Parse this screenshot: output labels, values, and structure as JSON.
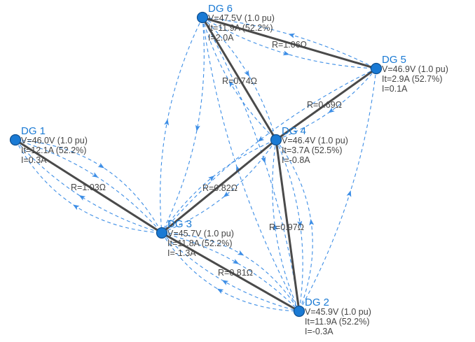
{
  "nodes": [
    {
      "id": "dg1",
      "title": "DG 1",
      "v": "V=46.0V (1.0 pu)",
      "it": "It=12.1A (52.2%)",
      "i": "I=0.3A"
    },
    {
      "id": "dg2",
      "title": "DG 2",
      "v": "V=45.9V (1.0 pu)",
      "it": "It=11.9A (52.2%)",
      "i": "I=-0.3A"
    },
    {
      "id": "dg3",
      "title": "DG 3",
      "v": "V=45.7V (1.0 pu)",
      "it": "It=11.8A (52.2%)",
      "i": "I=-1.3A"
    },
    {
      "id": "dg4",
      "title": "DG 4",
      "v": "V=46.4V (1.0 pu)",
      "it": "It=3.7A (52.5%)",
      "i": "I=-0.8A"
    },
    {
      "id": "dg5",
      "title": "DG 5",
      "v": "V=46.9V (1.0 pu)",
      "it": "It=2.9A (52.7%)",
      "i": "I=0.1A"
    },
    {
      "id": "dg6",
      "title": "DG 6",
      "v": "V=47.5V (1.0 pu)",
      "it": "It=11.9A (52.2%)",
      "i": "I=2.0A"
    }
  ],
  "lines": [
    {
      "from": "dg1",
      "to": "dg3",
      "label": "R=1.03Ω"
    },
    {
      "from": "dg3",
      "to": "dg2",
      "label": "R=0.81Ω"
    },
    {
      "from": "dg3",
      "to": "dg4",
      "label": "R=0.82Ω"
    },
    {
      "from": "dg4",
      "to": "dg2",
      "label": "R=0.97Ω"
    },
    {
      "from": "dg4",
      "to": "dg5",
      "label": "R=0.69Ω"
    },
    {
      "from": "dg6",
      "to": "dg4",
      "label": "R=0.74Ω"
    },
    {
      "from": "dg6",
      "to": "dg5",
      "label": "R=1.06Ω"
    }
  ],
  "colors": {
    "node": "#1a7ad4",
    "line": "#4a4a4a",
    "flow": "#3d8ee6",
    "text": "#444444"
  }
}
